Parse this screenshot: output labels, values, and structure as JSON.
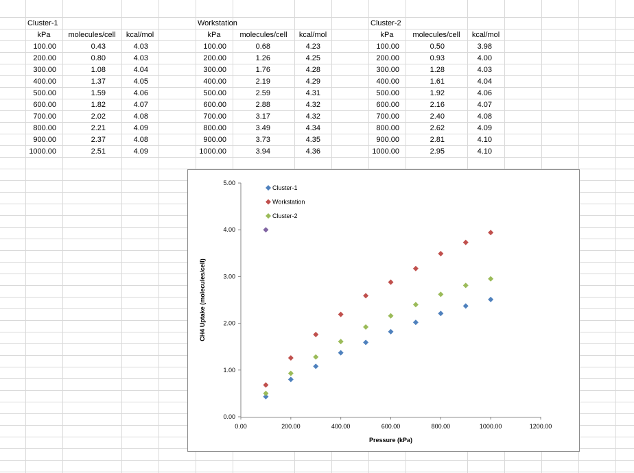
{
  "sheet": {
    "tables": [
      {
        "name": "Cluster-1",
        "headers": [
          "kPa",
          "molecules/cell",
          "kcal/mol"
        ],
        "rows": [
          [
            "100.00",
            "0.43",
            "4.03"
          ],
          [
            "200.00",
            "0.80",
            "4.03"
          ],
          [
            "300.00",
            "1.08",
            "4.04"
          ],
          [
            "400.00",
            "1.37",
            "4.05"
          ],
          [
            "500.00",
            "1.59",
            "4.06"
          ],
          [
            "600.00",
            "1.82",
            "4.07"
          ],
          [
            "700.00",
            "2.02",
            "4.08"
          ],
          [
            "800.00",
            "2.21",
            "4.09"
          ],
          [
            "900.00",
            "2.37",
            "4.08"
          ],
          [
            "1000.00",
            "2.51",
            "4.09"
          ]
        ]
      },
      {
        "name": "Workstation",
        "headers": [
          "kPa",
          "molecules/cell",
          "kcal/mol"
        ],
        "rows": [
          [
            "100.00",
            "0.68",
            "4.23"
          ],
          [
            "200.00",
            "1.26",
            "4.25"
          ],
          [
            "300.00",
            "1.76",
            "4.28"
          ],
          [
            "400.00",
            "2.19",
            "4.29"
          ],
          [
            "500.00",
            "2.59",
            "4.31"
          ],
          [
            "600.00",
            "2.88",
            "4.32"
          ],
          [
            "700.00",
            "3.17",
            "4.32"
          ],
          [
            "800.00",
            "3.49",
            "4.34"
          ],
          [
            "900.00",
            "3.73",
            "4.35"
          ],
          [
            "1000.00",
            "3.94",
            "4.36"
          ]
        ]
      },
      {
        "name": "Cluster-2",
        "headers": [
          "kPa",
          "molecules/cell",
          "kcal/mol"
        ],
        "rows": [
          [
            "100.00",
            "0.50",
            "3.98"
          ],
          [
            "200.00",
            "0.93",
            "4.00"
          ],
          [
            "300.00",
            "1.28",
            "4.03"
          ],
          [
            "400.00",
            "1.61",
            "4.04"
          ],
          [
            "500.00",
            "1.92",
            "4.06"
          ],
          [
            "600.00",
            "2.16",
            "4.07"
          ],
          [
            "700.00",
            "2.40",
            "4.08"
          ],
          [
            "800.00",
            "2.62",
            "4.09"
          ],
          [
            "900.00",
            "2.81",
            "4.10"
          ],
          [
            "1000.00",
            "2.95",
            "4.10"
          ]
        ]
      }
    ]
  },
  "chart_data": {
    "type": "scatter",
    "title": "",
    "xlabel": "Pressure (kPa)",
    "ylabel": "CH4  Uptake (molecules/cell)",
    "xlim": [
      0,
      1200
    ],
    "ylim": [
      0,
      5
    ],
    "x_ticks": [
      "0.00",
      "200.00",
      "400.00",
      "600.00",
      "800.00",
      "1000.00",
      "1200.00"
    ],
    "y_ticks": [
      "0.00",
      "1.00",
      "2.00",
      "3.00",
      "4.00",
      "5.00"
    ],
    "grid": false,
    "legend_position": "top-left",
    "series": [
      {
        "name": "Cluster-1",
        "color": "#4f81bd",
        "x": [
          100,
          200,
          300,
          400,
          500,
          600,
          700,
          800,
          900,
          1000
        ],
        "y": [
          0.43,
          0.8,
          1.08,
          1.37,
          1.59,
          1.82,
          2.02,
          2.21,
          2.37,
          2.51
        ]
      },
      {
        "name": "Workstation",
        "color": "#c0504d",
        "x": [
          100,
          200,
          300,
          400,
          500,
          600,
          700,
          800,
          900,
          1000
        ],
        "y": [
          0.68,
          1.26,
          1.76,
          2.19,
          2.59,
          2.88,
          3.17,
          3.49,
          3.73,
          3.94
        ]
      },
      {
        "name": "Cluster-2",
        "color": "#9bbb59",
        "x": [
          100,
          200,
          300,
          400,
          500,
          600,
          700,
          800,
          900,
          1000
        ],
        "y": [
          0.5,
          0.93,
          1.28,
          1.61,
          1.92,
          2.16,
          2.4,
          2.62,
          2.81,
          2.95
        ]
      }
    ],
    "extra_marker": {
      "color": "#8064a2",
      "x": 100,
      "y": 4.0
    }
  }
}
